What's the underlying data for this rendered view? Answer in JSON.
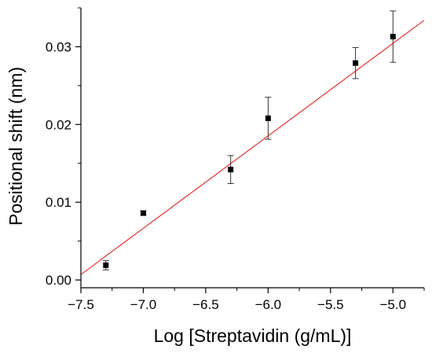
{
  "chart_data": {
    "type": "scatter",
    "title": "",
    "xlabel": "Log [Streptavidin (g/mL)]",
    "ylabel": "Positional shift (nm)",
    "xlim": [
      -7.5,
      -4.75
    ],
    "ylim": [
      -0.001,
      0.035
    ],
    "x_ticks": [
      -7.5,
      -7.0,
      -6.5,
      -6.0,
      -5.5,
      -5.0
    ],
    "x_tick_labels": [
      "−7.5",
      "−7.0",
      "−6.5",
      "−6.0",
      "−5.5",
      "−5.0"
    ],
    "y_ticks": [
      0.0,
      0.01,
      0.02,
      0.03
    ],
    "y_tick_labels": [
      "0.00",
      "0.01",
      "0.02",
      "0.03"
    ],
    "grid": false,
    "legend": "none",
    "series": [
      {
        "marker": "square",
        "color": "#000000",
        "points": [
          {
            "x": -7.3,
            "y": 0.0019,
            "err": 0.0006
          },
          {
            "x": -7.0,
            "y": 0.0086,
            "err": 0.0003
          },
          {
            "x": -6.3,
            "y": 0.0142,
            "err": 0.0018
          },
          {
            "x": -6.0,
            "y": 0.0208,
            "err": 0.0027
          },
          {
            "x": -5.3,
            "y": 0.0279,
            "err": 0.002
          },
          {
            "x": -5.0,
            "y": 0.0313,
            "err": 0.0033
          }
        ]
      }
    ],
    "fit_line": {
      "color": "#e8312f",
      "x": [
        -7.5,
        -4.75
      ],
      "y": [
        0.0007,
        0.0334
      ]
    }
  }
}
